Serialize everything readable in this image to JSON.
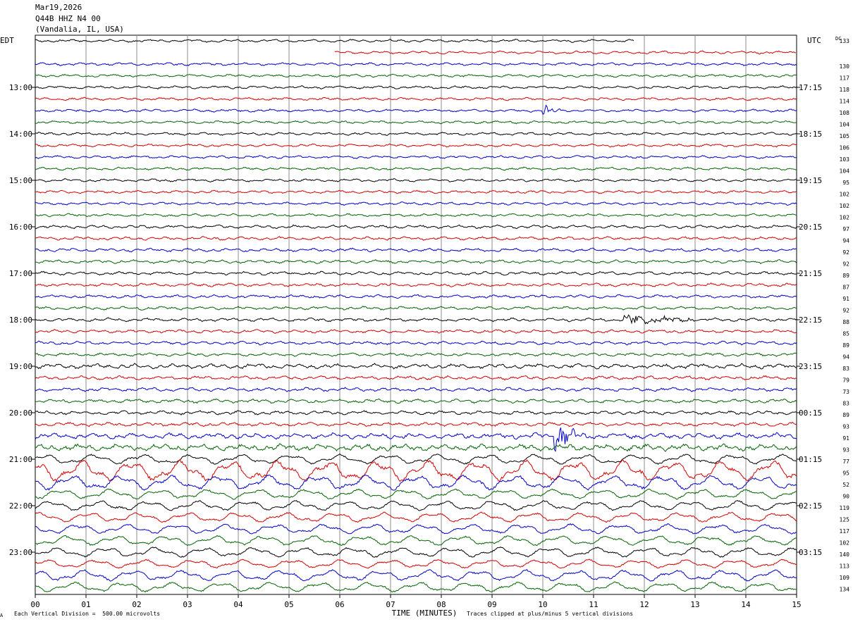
{
  "header": {
    "date": "Mar19,2026",
    "station": "Q44B HHZ N4 00",
    "location": "(Vandalia, IL, USA)"
  },
  "footer": {
    "left_mark": "A",
    "scale_note": "Each Vertical Division =  500.00 microvolts",
    "clip_note": "Traces clipped at plus/minus 5 vertical divisions"
  },
  "chart_data": {
    "type": "line",
    "title": "",
    "xlabel": "TIME (MINUTES)",
    "xlim": [
      0,
      15
    ],
    "x_ticks": [
      "00",
      "01",
      "02",
      "03",
      "04",
      "05",
      "06",
      "07",
      "08",
      "09",
      "10",
      "11",
      "12",
      "13",
      "14",
      "15"
    ],
    "left_axis_label": "EDT",
    "right_axis_label": "UTC",
    "dc_label": "DC",
    "left_time_labels": [
      "13:00",
      "14:00",
      "15:00",
      "16:00",
      "17:00",
      "18:00",
      "19:00",
      "20:00",
      "21:00",
      "22:00",
      "23:00"
    ],
    "right_time_labels": [
      "17:15",
      "18:15",
      "19:15",
      "20:15",
      "21:15",
      "22:15",
      "23:15",
      "00:15",
      "01:15",
      "02:15",
      "03:15"
    ],
    "trace_colors": [
      "#000000",
      "#d40000",
      "#0000c8",
      "#006400"
    ],
    "dc_offsets": [
      133,
      "",
      130,
      117,
      118,
      114,
      108,
      104,
      105,
      106,
      103,
      104,
      95,
      102,
      102,
      102,
      97,
      94,
      92,
      92,
      89,
      87,
      91,
      92,
      88,
      85,
      89,
      94,
      83,
      79,
      73,
      83,
      89,
      93,
      91,
      93,
      77,
      95,
      52,
      90,
      119,
      125,
      117,
      102,
      140,
      113,
      109,
      134
    ],
    "trace_amplitude_divisions": [
      0.3,
      0.3,
      0.3,
      0.3,
      0.3,
      0.3,
      0.3,
      0.3,
      0.3,
      0.3,
      0.3,
      0.3,
      0.3,
      0.3,
      0.3,
      0.3,
      0.35,
      0.35,
      0.35,
      0.35,
      0.35,
      0.35,
      0.35,
      0.35,
      0.35,
      0.35,
      0.35,
      0.35,
      0.5,
      0.4,
      0.4,
      0.4,
      0.4,
      0.4,
      0.6,
      0.7,
      0.8,
      1.7,
      1.2,
      0.8,
      0.8,
      0.8,
      0.8,
      0.8,
      0.8,
      0.7,
      0.9,
      0.8
    ],
    "events": [
      {
        "trace": 6,
        "minute_start": 10.0,
        "minute_end": 10.4,
        "amplitude_divisions": 0.6
      },
      {
        "trace": 24,
        "minute_start": 11.6,
        "minute_end": 12.9,
        "amplitude_divisions": 0.5
      },
      {
        "trace": 34,
        "minute_start": 10.2,
        "minute_end": 10.9,
        "amplitude_divisions": 1.0
      }
    ]
  }
}
